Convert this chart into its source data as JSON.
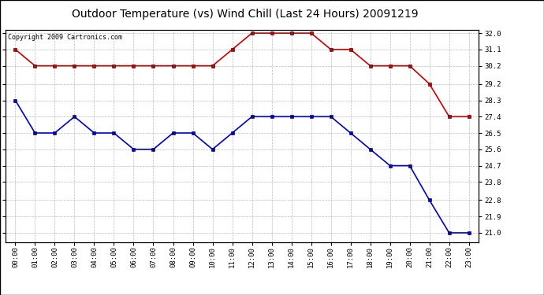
{
  "title": "Outdoor Temperature (vs) Wind Chill (Last 24 Hours) 20091219",
  "copyright": "Copyright 2009 Cartronics.com",
  "hours": [
    "00:00",
    "01:00",
    "02:00",
    "03:00",
    "04:00",
    "05:00",
    "06:00",
    "07:00",
    "08:00",
    "09:00",
    "10:00",
    "11:00",
    "12:00",
    "13:00",
    "14:00",
    "15:00",
    "16:00",
    "17:00",
    "18:00",
    "19:00",
    "20:00",
    "21:00",
    "22:00",
    "23:00"
  ],
  "temp": [
    31.1,
    30.2,
    30.2,
    30.2,
    30.2,
    30.2,
    30.2,
    30.2,
    30.2,
    30.2,
    30.2,
    31.1,
    32.0,
    32.0,
    32.0,
    32.0,
    31.1,
    31.1,
    30.2,
    30.2,
    30.2,
    29.2,
    27.4,
    27.4
  ],
  "windchill": [
    28.3,
    26.5,
    26.5,
    27.4,
    26.5,
    26.5,
    25.6,
    25.6,
    26.5,
    26.5,
    25.6,
    26.5,
    27.4,
    27.4,
    27.4,
    27.4,
    27.4,
    26.5,
    25.6,
    24.7,
    24.7,
    22.8,
    21.0,
    21.0
  ],
  "temp_color": "#cc0000",
  "windchill_color": "#0000cc",
  "marker": "s",
  "marker_size": 3,
  "ylim_min": 21.0,
  "ylim_max": 32.0,
  "yticks": [
    21.0,
    21.9,
    22.8,
    23.8,
    24.7,
    25.6,
    26.5,
    27.4,
    28.3,
    29.2,
    30.2,
    31.1,
    32.0
  ],
  "bg_color": "#ffffff",
  "plot_bg_color": "#ffffff",
  "grid_color": "#bbbbbb",
  "title_fontsize": 10,
  "tick_fontsize": 6.5,
  "copyright_fontsize": 6,
  "linewidth": 1.2
}
